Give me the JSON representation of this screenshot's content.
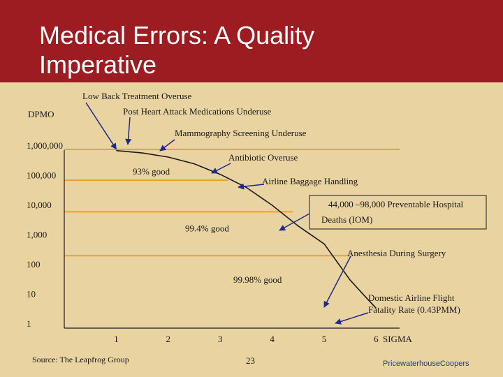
{
  "slide": {
    "title": "Medical Errors: A Quality Imperative",
    "source": "Source: The Leapfrog Group",
    "page_number": "23",
    "brand": "PricewaterhouseCoopers"
  },
  "colors": {
    "header_bg": "#9d1c22",
    "slide_bg": "#e8d3a1",
    "ref_lines": "#f0a028",
    "curve": "#1a1a1a",
    "arrows": "#1e2a8a"
  },
  "chart_data": {
    "type": "line",
    "title": "",
    "ylabel": "DPMO",
    "xlabel": "SIGMA",
    "y_scale": "log",
    "y_ticks": [
      {
        "value": 1000000,
        "label": "1,000,000"
      },
      {
        "value": 100000,
        "label": "100,000"
      },
      {
        "value": 10000,
        "label": "10,000"
      },
      {
        "value": 1000,
        "label": "1,000"
      },
      {
        "value": 100,
        "label": "100"
      },
      {
        "value": 10,
        "label": "10"
      },
      {
        "value": 1,
        "label": "1"
      }
    ],
    "x_ticks": [
      "1",
      "2",
      "3",
      "4",
      "5",
      "6"
    ],
    "xlim": [
      0,
      6.5
    ],
    "ylim": [
      1,
      1000000
    ],
    "series": [
      {
        "points": [
          {
            "x": 1.0,
            "y": 697000
          },
          {
            "x": 1.5,
            "y": 580000
          },
          {
            "x": 2.0,
            "y": 420000
          },
          {
            "x": 2.5,
            "y": 250000
          },
          {
            "x": 3.0,
            "y": 110000
          },
          {
            "x": 3.5,
            "y": 40000
          },
          {
            "x": 4.0,
            "y": 10000
          },
          {
            "x": 4.5,
            "y": 2000
          },
          {
            "x": 5.0,
            "y": 500
          },
          {
            "x": 5.5,
            "y": 30
          },
          {
            "x": 5.8,
            "y": 8
          },
          {
            "x": 6.0,
            "y": 3.4
          }
        ]
      }
    ],
    "reference_lines": [
      {
        "y": 70000,
        "x_end": 3.15,
        "label": "93% good"
      },
      {
        "y": 6000,
        "x_end": 4.4,
        "label": "99.4% good"
      },
      {
        "y": 200,
        "x_end": 5.5,
        "label": "99.98% good"
      }
    ],
    "annotations": [
      {
        "text": "Low Back Treatment Overuse",
        "x": 1.0,
        "y": 697000
      },
      {
        "text": "Post Heart Attack Medications Underuse",
        "x": 1.8,
        "y": 480000
      },
      {
        "text": "Mammography Screening Underuse",
        "x": 2.4,
        "y": 280000
      },
      {
        "text": "Antibiotic Overuse",
        "x": 3.2,
        "y": 90000
      },
      {
        "text": "Airline Baggage Handling",
        "x": 3.55,
        "y": 36000
      },
      {
        "text": "44,000 –98,000 Preventable Hospital Deaths (IOM)",
        "x": 4.4,
        "y": 3000
      },
      {
        "text": "Anesthesia During Surgery",
        "x": 5.4,
        "y": 50
      },
      {
        "text": "Domestic Airline Flight Fatality Rate (0.43PMM)",
        "x": 6.0,
        "y": 0.43
      }
    ]
  }
}
